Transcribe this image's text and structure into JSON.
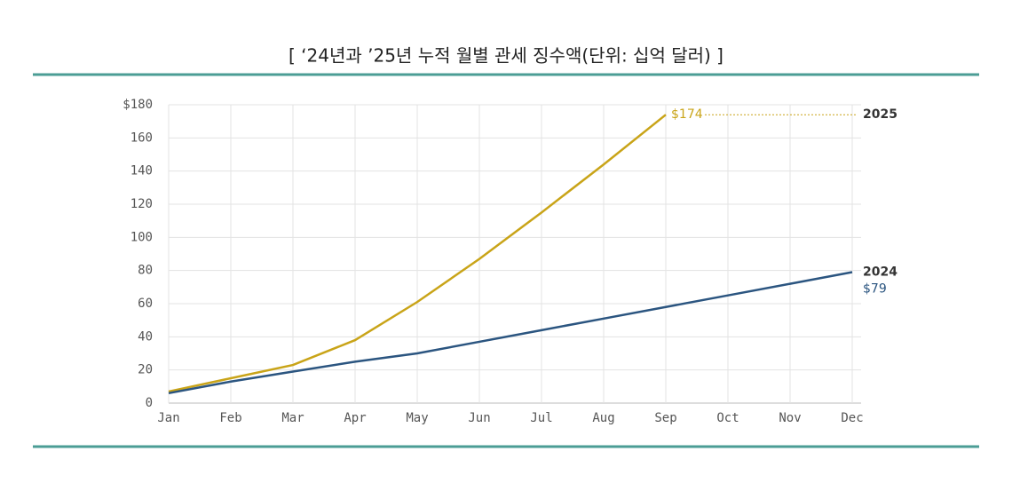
{
  "chart_data": {
    "type": "line",
    "title": "[ ‘24년과 ’25년 누적 월별 관세 징수액(단위: 십억 달러) ]",
    "categories": [
      "Jan",
      "Feb",
      "Mar",
      "Apr",
      "May",
      "Jun",
      "Jul",
      "Aug",
      "Sep",
      "Oct",
      "Nov",
      "Dec"
    ],
    "series": [
      {
        "name": "2025",
        "color": "#c9a418",
        "values": [
          7,
          15,
          23,
          38,
          61,
          87,
          115,
          144,
          174,
          null,
          null,
          null
        ],
        "value_labels": [
          null,
          null,
          null,
          null,
          null,
          null,
          null,
          null,
          "$174",
          null,
          null,
          null
        ]
      },
      {
        "name": "2024",
        "color": "#2b5580",
        "values": [
          6,
          13,
          19,
          25,
          30,
          37,
          44,
          51,
          58,
          65,
          72,
          79
        ],
        "value_labels": [
          null,
          null,
          null,
          null,
          null,
          null,
          null,
          null,
          null,
          null,
          null,
          "$79"
        ]
      }
    ],
    "ylim": [
      0,
      180
    ],
    "yticks": [
      0,
      20,
      40,
      60,
      80,
      100,
      120,
      140,
      160,
      {
        "value": 180,
        "label": "$180"
      }
    ],
    "grid": true
  }
}
